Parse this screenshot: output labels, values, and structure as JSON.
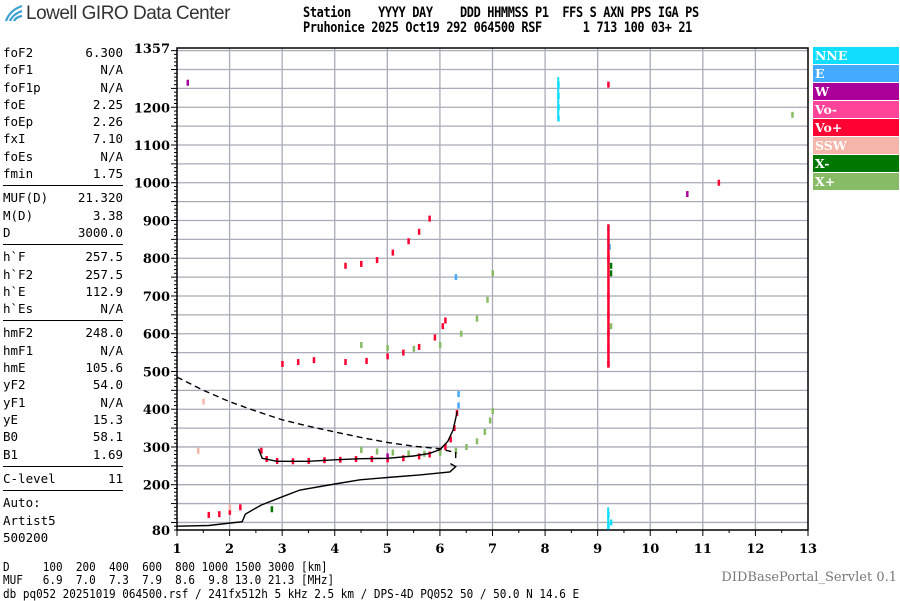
{
  "header": {
    "logo_text": "Lowell GIRO Data Center",
    "line1": "Station    YYYY DAY    DDD HHMMSS P1  FFS S AXN PPS IGA PS",
    "line2": "Pruhonice 2025 Oct19 292 064500 RSF      1 713 100 03+ 21"
  },
  "params": {
    "group1": [
      [
        "foF2",
        "6.300"
      ],
      [
        "foF1",
        "N/A"
      ],
      [
        "foF1p",
        "N/A"
      ],
      [
        "foE",
        "2.25"
      ],
      [
        "foEp",
        "2.26"
      ],
      [
        "fxI",
        "7.10"
      ],
      [
        "foEs",
        "N/A"
      ],
      [
        "fmin",
        "1.75"
      ]
    ],
    "group2": [
      [
        "MUF(D)",
        "21.320"
      ],
      [
        "M(D)",
        "3.38"
      ],
      [
        "D",
        "3000.0"
      ]
    ],
    "group3": [
      [
        "h`F",
        "257.5"
      ],
      [
        "h`F2",
        "257.5"
      ],
      [
        "h`E",
        "112.9"
      ],
      [
        "h`Es",
        "N/A"
      ]
    ],
    "group4": [
      [
        "hmF2",
        "248.0"
      ],
      [
        "hmF1",
        "N/A"
      ],
      [
        "hmE",
        "105.6"
      ],
      [
        "yF2",
        "54.0"
      ],
      [
        "yF1",
        "N/A"
      ],
      [
        "yE",
        "15.3"
      ],
      [
        "B0",
        "58.1"
      ],
      [
        "B1",
        "1.69"
      ]
    ],
    "group5": [
      [
        "C-level",
        "11"
      ]
    ],
    "auto": [
      "Auto:",
      "Artist5",
      "500200"
    ]
  },
  "legend": [
    {
      "label": "NNE",
      "color": "#11ddff"
    },
    {
      "label": "E",
      "color": "#44aaff"
    },
    {
      "label": "W",
      "color": "#aa0099"
    },
    {
      "label": "Vo-",
      "color": "#ff4499"
    },
    {
      "label": "Vo+",
      "color": "#ff0033"
    },
    {
      "label": "SSW",
      "color": "#f5b5aa"
    },
    {
      "label": "X-",
      "color": "#007700"
    },
    {
      "label": "X+",
      "color": "#88bb66"
    }
  ],
  "bottom": {
    "d_row": "D     100  200  400  600  800 1000 1500 3000 [km]",
    "muf_row": "MUF   6.9  7.0  7.3  7.9  8.6  9.8 13.0 21.3 [MHz]",
    "info": "db pq052 20251019 064500.rsf / 241fx512h 5 kHz 2.5 km / DPS-4D PQ052 50 / 50.0 N 14.6 E",
    "version": "DIDBasePortal_Servlet 0.1"
  },
  "chart_data": {
    "type": "scatter",
    "xlim": [
      1,
      13
    ],
    "ylim": [
      80,
      1357
    ],
    "xticks": [
      "1",
      "2",
      "3",
      "4",
      "5",
      "6",
      "7",
      "8",
      "9",
      "10",
      "11",
      "12",
      "13"
    ],
    "yticks": [
      "80",
      "200",
      "300",
      "400",
      "500",
      "600",
      "700",
      "800",
      "900",
      "1000",
      "1100",
      "1200",
      "1357"
    ],
    "grid": true,
    "series": [
      {
        "name": "Vo+",
        "color": "#ff0033",
        "points": [
          [
            2.6,
            290
          ],
          [
            2.7,
            268
          ],
          [
            2.9,
            263
          ],
          [
            3.2,
            262
          ],
          [
            3.5,
            263
          ],
          [
            3.8,
            265
          ],
          [
            4.1,
            266
          ],
          [
            4.4,
            268
          ],
          [
            4.7,
            268
          ],
          [
            5.0,
            267
          ],
          [
            5.3,
            270
          ],
          [
            5.6,
            275
          ],
          [
            5.8,
            280
          ],
          [
            6.0,
            290
          ],
          [
            6.1,
            300
          ],
          [
            6.2,
            320
          ],
          [
            6.27,
            350
          ],
          [
            6.32,
            390
          ],
          [
            3.0,
            520
          ],
          [
            3.3,
            525
          ],
          [
            3.6,
            530
          ],
          [
            4.2,
            525
          ],
          [
            4.6,
            528
          ],
          [
            5.0,
            540
          ],
          [
            5.3,
            550
          ],
          [
            5.6,
            565
          ],
          [
            5.9,
            590
          ],
          [
            6.05,
            620
          ],
          [
            6.1,
            635
          ],
          [
            4.2,
            780
          ],
          [
            4.5,
            785
          ],
          [
            4.8,
            795
          ],
          [
            5.1,
            815
          ],
          [
            5.4,
            845
          ],
          [
            5.6,
            870
          ],
          [
            5.8,
            905
          ],
          [
            1.6,
            120
          ],
          [
            1.8,
            122
          ],
          [
            2.0,
            128
          ],
          [
            2.2,
            140
          ],
          [
            9.2,
            520
          ],
          [
            9.2,
            600
          ],
          [
            9.2,
            700
          ],
          [
            9.2,
            800
          ],
          [
            9.2,
            1260
          ],
          [
            11.3,
            1000
          ]
        ]
      },
      {
        "name": "X+",
        "color": "#88bb66",
        "points": [
          [
            4.5,
            292
          ],
          [
            4.8,
            288
          ],
          [
            5.1,
            285
          ],
          [
            5.4,
            283
          ],
          [
            5.7,
            282
          ],
          [
            6.0,
            284
          ],
          [
            6.3,
            290
          ],
          [
            6.5,
            300
          ],
          [
            6.7,
            315
          ],
          [
            6.85,
            340
          ],
          [
            6.95,
            370
          ],
          [
            7.0,
            395
          ],
          [
            4.5,
            570
          ],
          [
            5.0,
            562
          ],
          [
            5.5,
            560
          ],
          [
            6.0,
            570
          ],
          [
            6.4,
            600
          ],
          [
            6.7,
            640
          ],
          [
            6.9,
            690
          ],
          [
            7.0,
            760
          ],
          [
            9.25,
            620
          ],
          [
            12.7,
            1180
          ]
        ]
      },
      {
        "name": "NNE",
        "color": "#11ddff",
        "points": [
          [
            8.25,
            1170
          ],
          [
            8.25,
            1200
          ],
          [
            8.25,
            1230
          ],
          [
            8.25,
            1260
          ],
          [
            9.2,
            850
          ],
          [
            9.2,
            880
          ],
          [
            9.2,
            90
          ],
          [
            9.2,
            120
          ],
          [
            9.25,
            100
          ]
        ]
      },
      {
        "name": "E",
        "color": "#44aaff",
        "points": [
          [
            6.35,
            410
          ],
          [
            6.35,
            440
          ],
          [
            6.3,
            750
          ],
          [
            9.22,
            830
          ]
        ]
      },
      {
        "name": "W",
        "color": "#aa0099",
        "points": [
          [
            1.2,
            1265
          ],
          [
            10.7,
            970
          ],
          [
            5.0,
            275
          ]
        ]
      },
      {
        "name": "Vo-",
        "color": "#ff4499",
        "points": [
          [
            9.2,
            560
          ],
          [
            9.2,
            650
          ]
        ]
      },
      {
        "name": "SSW",
        "color": "#f5b5aa",
        "points": [
          [
            1.4,
            290
          ],
          [
            2.0,
            140
          ],
          [
            1.5,
            420
          ]
        ]
      },
      {
        "name": "X-",
        "color": "#007700",
        "points": [
          [
            9.25,
            760
          ],
          [
            9.25,
            780
          ],
          [
            2.8,
            135
          ]
        ]
      },
      {
        "color": "#000000",
        "style": "solid",
        "points": [
          [
            1,
            90
          ],
          [
            1.6,
            92
          ],
          [
            2.24,
            102
          ],
          [
            2.3,
            122
          ],
          [
            2.6,
            146
          ],
          [
            3.0,
            168
          ],
          [
            3.34,
            186
          ],
          [
            4.0,
            202
          ],
          [
            4.48,
            213
          ],
          [
            5.0,
            219
          ],
          [
            5.62,
            226
          ],
          [
            6.19,
            234
          ],
          [
            6.3,
            248
          ],
          [
            6.2,
            256
          ]
        ]
      },
      {
        "color": "#000000",
        "style": "solid",
        "points": [
          [
            2.55,
            295
          ],
          [
            2.62,
            270
          ],
          [
            2.9,
            262
          ],
          [
            3.5,
            262
          ],
          [
            4.0,
            266
          ],
          [
            4.5,
            269
          ],
          [
            5.0,
            270
          ],
          [
            5.5,
            276
          ],
          [
            5.8,
            283
          ],
          [
            6.0,
            293
          ],
          [
            6.15,
            315
          ],
          [
            6.25,
            345
          ],
          [
            6.33,
            395
          ]
        ]
      },
      {
        "color": "#000000",
        "style": "dashed",
        "points": [
          [
            1.0,
            485
          ],
          [
            1.5,
            450
          ],
          [
            2.0,
            420
          ],
          [
            2.5,
            395
          ],
          [
            3.0,
            372
          ],
          [
            3.5,
            355
          ],
          [
            4.0,
            340
          ],
          [
            4.5,
            325
          ],
          [
            5.0,
            312
          ],
          [
            5.5,
            302
          ],
          [
            6.0,
            295
          ],
          [
            6.3,
            285
          ],
          [
            6.3,
            262
          ]
        ]
      }
    ]
  }
}
